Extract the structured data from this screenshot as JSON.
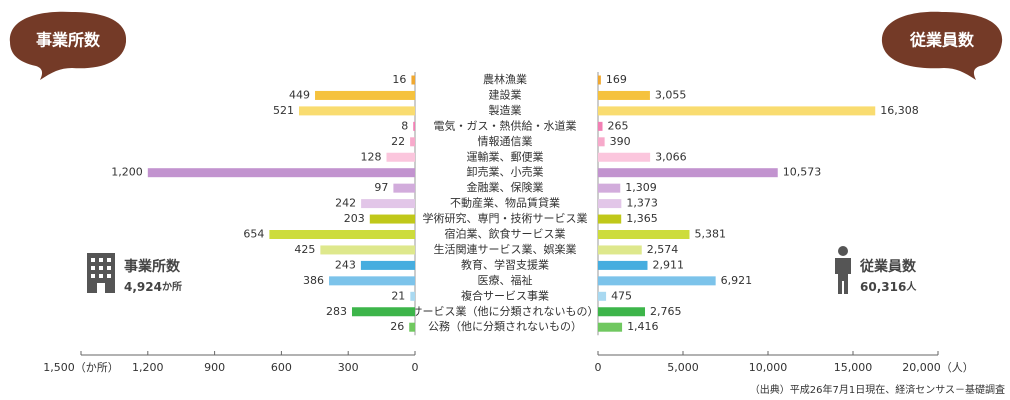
{
  "chart_data": [
    {
      "type": "hbar",
      "title": "事業所数",
      "total": 4924,
      "total_label": "4,924",
      "total_unit": "か所",
      "categories": [
        "農林漁業",
        "建設業",
        "製造業",
        "電気・ガス・熱供給・水道業",
        "情報通信業",
        "運輸業、郵便業",
        "卸売業、小売業",
        "金融業、保険業",
        "不動産業、物品賃貸業",
        "学術研究、専門・技術サービス業",
        "宿泊業、飲食サービス業",
        "生活関連サービス業、娯楽業",
        "教育、学習支援業",
        "医療、福祉",
        "複合サービス事業",
        "サービス業（他に分類されないもの）",
        "公務（他に分類されないもの）"
      ],
      "colors": [
        "#f0a830",
        "#f5c23e",
        "#f9dc70",
        "#f27fb4",
        "#f7aacb",
        "#fbc6dd",
        "#c293cf",
        "#d2acdc",
        "#e2c6e8",
        "#c0c81a",
        "#cddc3c",
        "#dee88c",
        "#46addf",
        "#7cc3ea",
        "#a9d9f1",
        "#3db54a",
        "#70c860"
      ],
      "values": [
        16,
        449,
        521,
        8,
        22,
        128,
        1200,
        97,
        242,
        203,
        654,
        425,
        243,
        386,
        21,
        283,
        26
      ],
      "value_labels": [
        "16",
        "449",
        "521",
        "8",
        "22",
        "128",
        "1,200",
        "97",
        "242",
        "203",
        "654",
        "425",
        "243",
        "386",
        "21",
        "283",
        "26"
      ],
      "xlim": [
        0,
        1500
      ],
      "xticks": [
        {
          "value": 1500,
          "label": "1,500（か所）"
        },
        {
          "value": 1200,
          "label": "1,200"
        },
        900,
        600,
        300,
        0
      ]
    },
    {
      "type": "hbar",
      "title": "従業員数",
      "total": 60316,
      "total_label": "60,316",
      "total_unit": "人",
      "values": [
        169,
        3055,
        16308,
        265,
        390,
        3066,
        10573,
        1309,
        1373,
        1365,
        5381,
        2574,
        2911,
        6921,
        475,
        2765,
        1416
      ],
      "value_labels": [
        "169",
        "3,055",
        "16,308",
        "265",
        "390",
        "3,066",
        "10,573",
        "1,309",
        "1,373",
        "1,365",
        "5,381",
        "2,574",
        "2,911",
        "6,921",
        "475",
        "2,765",
        "1,416"
      ],
      "xlim": [
        0,
        20000
      ],
      "xticks": [
        0,
        {
          "value": 5000,
          "label": "5,000"
        },
        {
          "value": 10000,
          "label": "10,000"
        },
        {
          "value": 15000,
          "label": "15,000"
        },
        {
          "value": 20000,
          "label": "20,000（人）"
        }
      ]
    }
  ],
  "source": "（出典）平成26年7月1日現在、経済センサス－基礎調査"
}
